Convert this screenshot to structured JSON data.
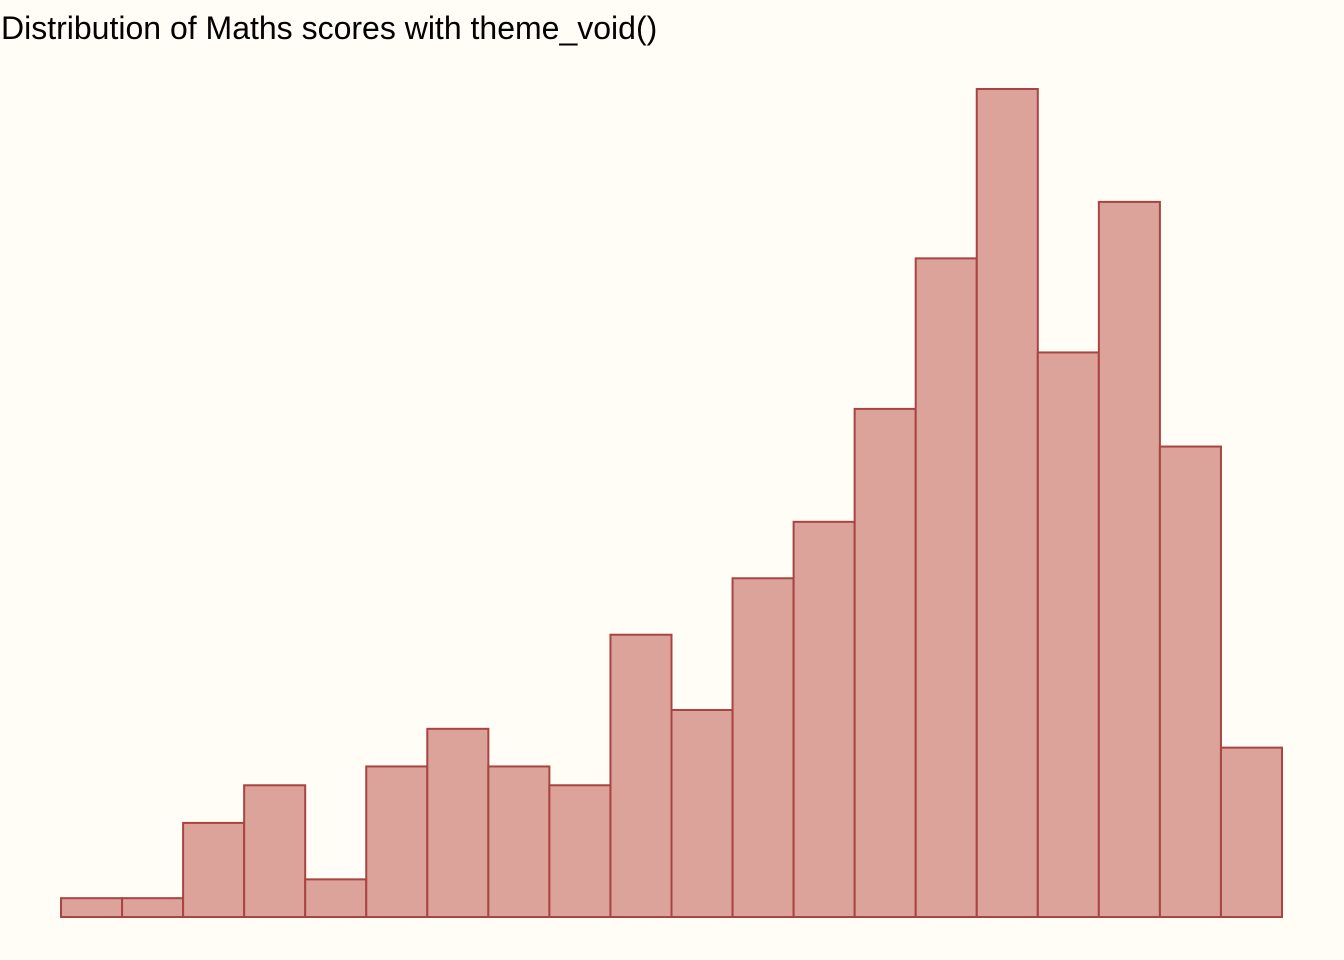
{
  "chart_data": {
    "type": "bar",
    "title": "Distribution of Maths scores with theme_void()",
    "xlabel": "",
    "ylabel": "",
    "bins": 20,
    "values": [
      1,
      1,
      5,
      7,
      2,
      8,
      10,
      8,
      7,
      15,
      11,
      18,
      21,
      27,
      35,
      44,
      30,
      38,
      25,
      9
    ],
    "ylim": [
      0,
      44
    ],
    "grid": false,
    "axes_visible": false,
    "fill_color": "#DBA39A",
    "stroke_color": "#A94442",
    "background_color": "#FFFDF5"
  }
}
